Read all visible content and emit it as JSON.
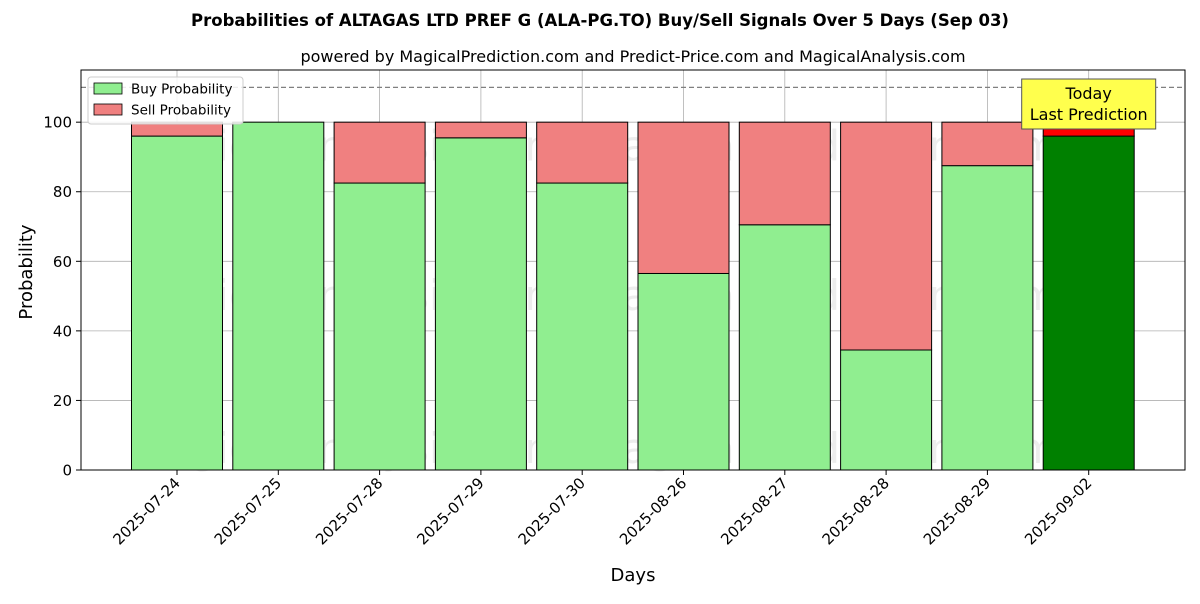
{
  "chart_data": {
    "type": "bar",
    "stacked": true,
    "title": "Probabilities of ALTAGAS LTD PREF G (ALA-PG.TO) Buy/Sell Signals Over 5 Days (Sep 03)",
    "subtitle": "powered by MagicalPrediction.com and Predict-Price.com and MagicalAnalysis.com",
    "xlabel": "Days",
    "ylabel": "Probability",
    "ylim": [
      0,
      115
    ],
    "yticks": [
      0,
      20,
      40,
      60,
      80,
      100
    ],
    "grid": true,
    "legend_position": "top-left",
    "reference_line": 110,
    "categories": [
      "2025-07-24",
      "2025-07-25",
      "2025-07-28",
      "2025-07-29",
      "2025-07-30",
      "2025-08-26",
      "2025-08-27",
      "2025-08-28",
      "2025-08-29",
      "2025-09-02"
    ],
    "series": [
      {
        "name": "Buy Probability",
        "values": [
          96,
          100,
          82.5,
          95.5,
          82.5,
          56.5,
          70.5,
          34.5,
          87.5,
          96
        ],
        "color": "#90ee90",
        "highlight_color": "#008000"
      },
      {
        "name": "Sell Probability",
        "values": [
          4,
          0,
          17.5,
          4.5,
          17.5,
          43.5,
          29.5,
          65.5,
          12.5,
          4
        ],
        "color": "#f08080",
        "highlight_color": "#ff0000"
      }
    ],
    "highlight_index": 9,
    "annotation": {
      "line1": "Today",
      "line2": "Last Prediction",
      "color": "#ffff4d"
    },
    "watermarks": [
      "MagicalAnalysis.com",
      "MagicalPrediction.com"
    ]
  }
}
